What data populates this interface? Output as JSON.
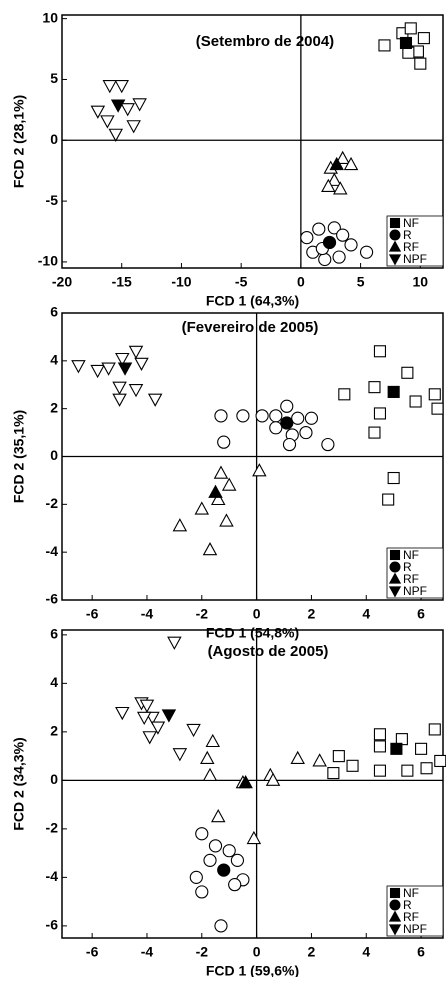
{
  "chart_data": [
    {
      "type": "scatter",
      "title": "(Setembro de 2004)",
      "x_label": "FCD 1 (64,3%)",
      "y_label": "FCD 2 (28,1%)",
      "xlim": [
        -20,
        11.9
      ],
      "ylim": [
        -10.5,
        10.3
      ],
      "xticks": [
        -20,
        -15,
        -10,
        -5,
        0,
        5,
        10
      ],
      "yticks": [
        -10,
        -5,
        0,
        5,
        10
      ],
      "legend": "lower right",
      "series": [
        {
          "name": "NF",
          "marker": "square",
          "x": [
            7,
            8.5,
            9.2,
            10.3,
            9.8,
            10,
            9
          ],
          "values": [
            7.8,
            8.8,
            9.2,
            8.4,
            7.3,
            6.3,
            7.2
          ],
          "centroid": [
            8.8,
            8
          ]
        },
        {
          "name": "R",
          "marker": "circle",
          "x": [
            0.5,
            1.5,
            2.8,
            3.5,
            1,
            2,
            3.2,
            4.2,
            5.5,
            1.8
          ],
          "values": [
            -8,
            -7.3,
            -7.2,
            -7.8,
            -9.2,
            -9.8,
            -9.6,
            -8.6,
            -9.2,
            -8.9
          ],
          "centroid": [
            2.4,
            -8.4
          ]
        },
        {
          "name": "RF",
          "marker": "triangle-up",
          "x": [
            2.5,
            3.5,
            4.2,
            2.8,
            3.3,
            2.3
          ],
          "values": [
            -2.3,
            -1.5,
            -2,
            -3.3,
            -4,
            -3.8
          ],
          "centroid": [
            3,
            -2
          ]
        },
        {
          "name": "NPF",
          "marker": "triangle-down",
          "x": [
            -16,
            -15,
            -17,
            -14.5,
            -13.5,
            -16.2,
            -14,
            -15.5
          ],
          "values": [
            4.5,
            4.5,
            2.4,
            2.6,
            3,
            1.6,
            1.2,
            0.5
          ],
          "centroid": [
            -15.3,
            2.9
          ]
        }
      ]
    },
    {
      "type": "scatter",
      "title": "(Fevereiro de 2005)",
      "x_label": "FCD 1 (54,8%)",
      "y_label": "FCD 2 (35,1%)",
      "xlim": [
        -7.1,
        6.8
      ],
      "ylim": [
        -6,
        6
      ],
      "xticks": [
        -6,
        -4,
        -2,
        0,
        2,
        4,
        6
      ],
      "yticks": [
        -6,
        -4,
        -2,
        0,
        2,
        4,
        6
      ],
      "legend": "lower right",
      "series": [
        {
          "name": "NF",
          "marker": "square",
          "x": [
            4.5,
            5.5,
            4.3,
            5.8,
            6.5,
            6.6,
            3.2,
            4.5,
            4.3,
            5,
            4.8
          ],
          "values": [
            4.4,
            3.5,
            2.9,
            2.3,
            2.6,
            2,
            2.6,
            1.8,
            1,
            -0.9,
            -1.8
          ],
          "centroid": [
            5,
            2.7
          ]
        },
        {
          "name": "R",
          "marker": "circle",
          "x": [
            -1.3,
            -0.5,
            0.2,
            0.7,
            1.1,
            1.5,
            2,
            0.7,
            1.3,
            1.8,
            2.6,
            1.2,
            -1.2
          ],
          "values": [
            1.7,
            1.7,
            1.7,
            1.7,
            2.1,
            1.6,
            1.6,
            1.2,
            0.9,
            1,
            0.5,
            0.5,
            0.6
          ],
          "centroid": [
            1.1,
            1.4
          ]
        },
        {
          "name": "RF",
          "marker": "triangle-up",
          "x": [
            -1.3,
            -1,
            -1.4,
            -2,
            -2.8,
            -1.1,
            -1.7,
            0.1
          ],
          "values": [
            -0.7,
            -1.2,
            -1.8,
            -2.2,
            -2.9,
            -2.7,
            -3.9,
            -0.6
          ],
          "centroid": [
            -1.5,
            -1.5
          ]
        },
        {
          "name": "NPF",
          "marker": "triangle-down",
          "x": [
            -6.5,
            -5.8,
            -5.4,
            -4.9,
            -4.4,
            -4.2,
            -5,
            -4.4,
            -5,
            -3.7
          ],
          "values": [
            3.8,
            3.6,
            3.7,
            4.1,
            4.4,
            3.9,
            2.9,
            2.8,
            2.4,
            2.4
          ],
          "centroid": [
            -4.8,
            3.7
          ]
        }
      ]
    },
    {
      "type": "scatter",
      "title": "(Agosto de 2005)",
      "x_label": "FCD 1 (59,6%)",
      "y_label": "FCD 2 (34,3%)",
      "xlim": [
        -7.1,
        6.8
      ],
      "ylim": [
        -6.5,
        6.2
      ],
      "xticks": [
        -6,
        -4,
        -2,
        0,
        2,
        4,
        6
      ],
      "yticks": [
        -6,
        -4,
        -2,
        0,
        2,
        4,
        6
      ],
      "legend": "lower right",
      "series": [
        {
          "name": "NF",
          "marker": "square",
          "x": [
            3,
            4.5,
            4.5,
            5.3,
            6,
            6.5,
            3.5,
            4.5,
            5.5,
            6.2,
            6.7,
            2.8
          ],
          "values": [
            1,
            1.9,
            1.4,
            1.7,
            1.3,
            2.1,
            0.6,
            0.4,
            0.4,
            0.5,
            0.8,
            0.3
          ],
          "centroid": [
            5.1,
            1.3
          ]
        },
        {
          "name": "R",
          "marker": "circle",
          "x": [
            -2,
            -1.5,
            -1,
            -1.7,
            -0.7,
            -0.5,
            -0.8,
            -2.2,
            -2,
            -1.3
          ],
          "values": [
            -2.2,
            -2.7,
            -2.9,
            -3.3,
            -3.3,
            -4.1,
            -4.3,
            -4,
            -4.6,
            -6
          ],
          "centroid": [
            -1.2,
            -3.7
          ]
        },
        {
          "name": "RF",
          "marker": "triangle-up",
          "x": [
            -1.6,
            -1.8,
            -1.7,
            -1.4,
            -0.1,
            0.5,
            0.6,
            1.5,
            2.3,
            -0.5
          ],
          "values": [
            1.6,
            0.9,
            0.2,
            -1.5,
            -2.4,
            0.2,
            0,
            0.9,
            0.8,
            -0.1
          ],
          "centroid": [
            -0.4,
            -0.1
          ]
        },
        {
          "name": "NPF",
          "marker": "triangle-down",
          "x": [
            -4.9,
            -4.2,
            -4,
            -3.8,
            -3.6,
            -2.3,
            -3,
            -4.1,
            -3.9,
            -2.8
          ],
          "values": [
            2.8,
            3.2,
            3.1,
            2.6,
            2.2,
            2.1,
            5.7,
            2.6,
            1.8,
            1.1
          ],
          "centroid": [
            -3.2,
            2.7
          ]
        }
      ]
    }
  ]
}
